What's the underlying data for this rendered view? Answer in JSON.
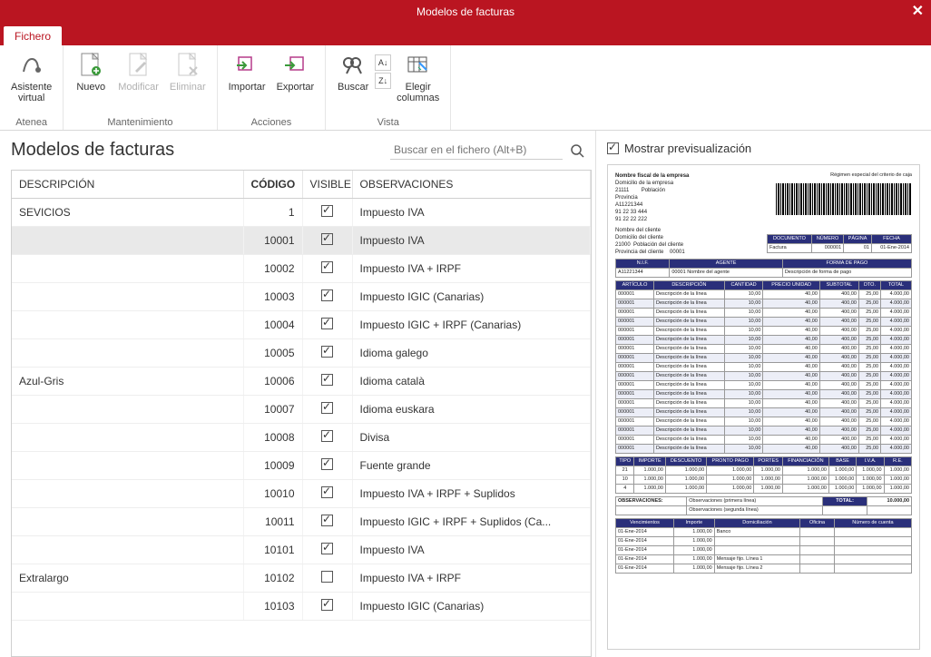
{
  "window": {
    "title": "Modelos de facturas"
  },
  "tabbar": {
    "fichero": "Fichero"
  },
  "ribbon": {
    "atenea": {
      "asistente_virtual": "Asistente\nvirtual",
      "group": "Atenea"
    },
    "mantenimiento": {
      "nuevo": "Nuevo",
      "modificar": "Modificar",
      "eliminar": "Eliminar",
      "group": "Mantenimiento"
    },
    "acciones": {
      "importar": "Importar",
      "exportar": "Exportar",
      "group": "Acciones"
    },
    "vista": {
      "buscar": "Buscar",
      "elegir_columnas": "Elegir\ncolumnas",
      "group": "Vista"
    }
  },
  "left": {
    "heading": "Modelos de facturas",
    "search_placeholder": "Buscar en el fichero (Alt+B)"
  },
  "grid": {
    "columns": {
      "descripcion": "DESCRIPCIÓN",
      "codigo": "CÓDIGO",
      "visible": "VISIBLE",
      "observaciones": "OBSERVACIONES"
    },
    "rows": [
      {
        "desc": "SEVICIOS",
        "code": "1",
        "visible": true,
        "obs": "Impuesto IVA",
        "group_start": true
      },
      {
        "desc": "",
        "code": "10001",
        "visible": true,
        "obs": "Impuesto IVA",
        "selected": true,
        "group_start": true
      },
      {
        "desc": "",
        "code": "10002",
        "visible": true,
        "obs": "Impuesto IVA + IRPF"
      },
      {
        "desc": "",
        "code": "10003",
        "visible": true,
        "obs": "Impuesto IGIC (Canarias)"
      },
      {
        "desc": "",
        "code": "10004",
        "visible": true,
        "obs": "Impuesto IGIC + IRPF (Canarias)"
      },
      {
        "desc": "",
        "code": "10005",
        "visible": true,
        "obs": "Idioma galego"
      },
      {
        "desc": "Azul-Gris",
        "code": "10006",
        "visible": true,
        "obs": "Idioma català"
      },
      {
        "desc": "",
        "code": "10007",
        "visible": true,
        "obs": "Idioma euskara"
      },
      {
        "desc": "",
        "code": "10008",
        "visible": true,
        "obs": "Divisa"
      },
      {
        "desc": "",
        "code": "10009",
        "visible": true,
        "obs": "Fuente grande"
      },
      {
        "desc": "",
        "code": "10010",
        "visible": true,
        "obs": "Impuesto IVA + IRPF + Suplidos"
      },
      {
        "desc": "",
        "code": "10011",
        "visible": true,
        "obs": "Impuesto IGIC + IRPF + Suplidos (Ca..."
      },
      {
        "desc": "",
        "code": "10101",
        "visible": true,
        "obs": "Impuesto IVA",
        "group_start": true
      },
      {
        "desc": "Extralargo",
        "code": "10102",
        "visible": false,
        "obs": "Impuesto IVA + IRPF"
      },
      {
        "desc": "",
        "code": "10103",
        "visible": true,
        "obs": "Impuesto IGIC (Canarias)"
      }
    ]
  },
  "right": {
    "mostrar_prev": "Mostrar previsualización",
    "mostrar_prev_checked": true
  },
  "preview": {
    "company": {
      "name": "Nombre fiscal de la empresa",
      "domicilio": "Domicilio de la empresa",
      "cp": "21111",
      "poblacion_lbl": "Población",
      "provincia": "Provincia",
      "nif": "A11221344",
      "tel1": "91 22 33 444",
      "tel2": "91 22 22 222",
      "regimen": "Régimen especial del criterio de caja"
    },
    "cliente": {
      "name": "Nombre del cliente",
      "domicilio": "Domicilio del cliente",
      "cp": "21000",
      "poblacion": "Población del cliente",
      "provincia": "Provincia del cliente",
      "code": "00001"
    },
    "doc_cols": [
      "DOCUMENTO",
      "NÚMERO",
      "PÁGINA",
      "FECHA"
    ],
    "doc_row": [
      "Factura",
      "000001",
      "01",
      "01-Ene-2014"
    ],
    "nif_agente_cols": [
      "N.I.F.",
      "AGENTE",
      "FORMA DE PAGO"
    ],
    "nif_agente_row": [
      "A11221344",
      "00001   Nombre del agente",
      "Descripción de forma de pago"
    ],
    "items_cols": [
      "ARTÍCULO",
      "DESCRIPCIÓN",
      "CANTIDAD",
      "PRECIO UNIDAD",
      "SUBTOTAL",
      "DTO.",
      "TOTAL"
    ],
    "items_row_proto": [
      "000001",
      "Descripción de la línea",
      "10,00",
      "40,00",
      "400,00",
      "25,00",
      "4.000,00"
    ],
    "items_count": 18,
    "tax_cols": [
      "TIPO",
      "IMPORTE",
      "DESCUENTO",
      "PRONTO PAGO",
      "PORTES",
      "FINANCIACIÓN",
      "BASE",
      "I.V.A.",
      "R.E."
    ],
    "tax_rows": [
      [
        "21",
        "1.000,00",
        "1.000,00",
        "1.000,00",
        "1.000,00",
        "1.000,00",
        "1.000,00",
        "1.000,00",
        "1.000,00"
      ],
      [
        "10",
        "1.000,00",
        "1.000,00",
        "1.000,00",
        "1.000,00",
        "1.000,00",
        "1.000,00",
        "1.000,00",
        "1.000,00"
      ],
      [
        "4",
        "1.000,00",
        "1.000,00",
        "1.000,00",
        "1.000,00",
        "1.000,00",
        "1.000,00",
        "1.000,00",
        "1.000,00"
      ]
    ],
    "obs_lbl": "OBSERVACIONES:",
    "obs1": "Observaciones (primera línea)",
    "obs2": "Observaciones (segunda línea)",
    "total_lbl": "TOTAL:",
    "total_val": "10.000,00",
    "venc_cols": [
      "Vencimientos",
      "Importe",
      "Domiciliación",
      "Oficina",
      "Número de cuenta"
    ],
    "venc_rows": [
      [
        "01-Ene-2014",
        "1.000,00",
        "Banco",
        "",
        ""
      ],
      [
        "01-Ene-2014",
        "1.000,00",
        "",
        "",
        ""
      ],
      [
        "01-Ene-2014",
        "1.000,00",
        "",
        "",
        ""
      ],
      [
        "01-Ene-2014",
        "1.000,00",
        "Mensaje fijo. Línea 1",
        "",
        ""
      ],
      [
        "01-Ene-2014",
        "1.000,00",
        "Mensaje fijo. Línea 2",
        "",
        ""
      ]
    ]
  },
  "colors": {
    "brand": "#BA1521",
    "invoice_header": "#2a2f7a",
    "row_alt": "#eceef7",
    "border": "#cfcfcf"
  }
}
